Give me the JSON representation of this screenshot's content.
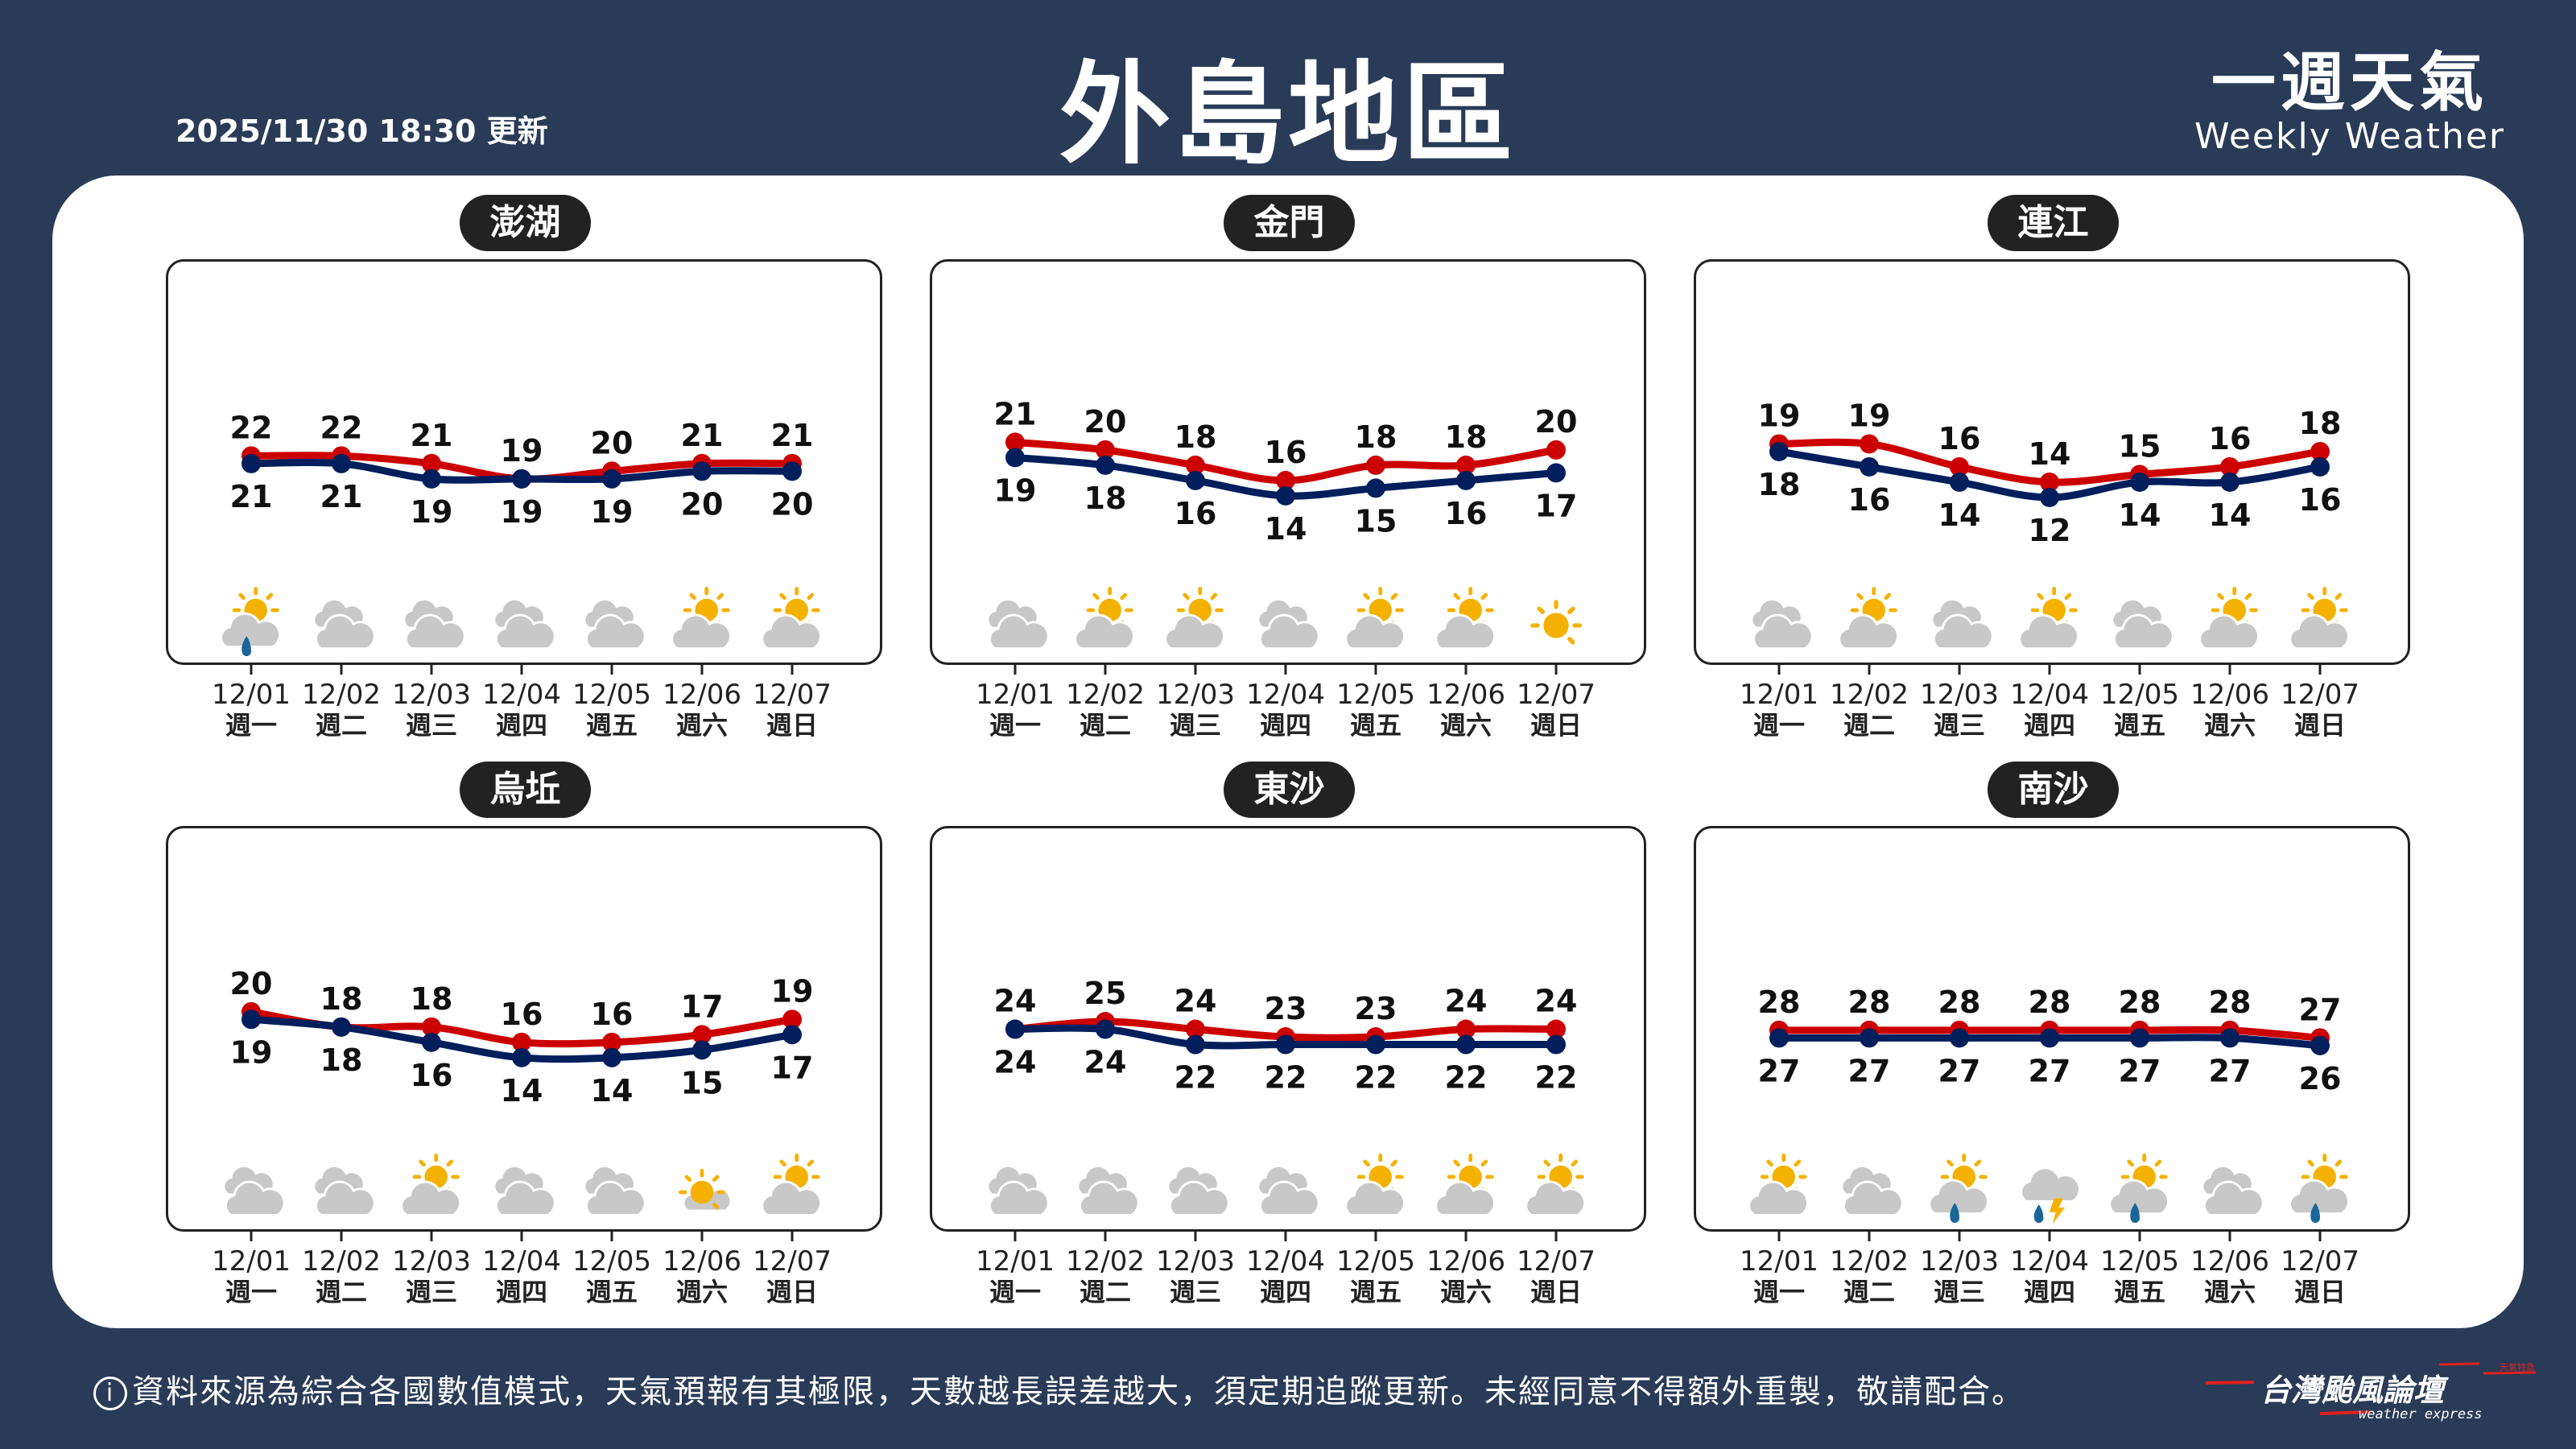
{
  "header": {
    "updated": "2025/11/30 18:30 更新",
    "title": "外島地區",
    "brand_zh": "一週天氣",
    "brand_en": "Weekly Weather"
  },
  "dates": [
    "12/01",
    "12/02",
    "12/03",
    "12/04",
    "12/05",
    "12/06",
    "12/07"
  ],
  "weekdays": [
    "週一",
    "週二",
    "週三",
    "週四",
    "週五",
    "週六",
    "週日"
  ],
  "colors": {
    "background": "#293b57",
    "high": "#cc0000",
    "low": "#001f5c",
    "sun": "#f5b100",
    "cloud": "#c8c8c8",
    "rain": "#1a6699"
  },
  "regions": [
    {
      "name": "澎湖",
      "high": [
        22,
        22,
        21,
        19,
        20,
        21,
        21
      ],
      "low": [
        21,
        21,
        19,
        19,
        19,
        20,
        20
      ],
      "icons": [
        "partly-cloudy-rain",
        "cloudy",
        "cloudy",
        "cloudy",
        "cloudy",
        "partly-cloudy",
        "partly-cloudy"
      ]
    },
    {
      "name": "金門",
      "high": [
        21,
        20,
        18,
        16,
        18,
        18,
        20
      ],
      "low": [
        19,
        18,
        16,
        14,
        15,
        16,
        17
      ],
      "icons": [
        "cloudy",
        "partly-cloudy",
        "partly-cloudy",
        "cloudy",
        "partly-cloudy",
        "partly-cloudy",
        "sunny"
      ]
    },
    {
      "name": "連江",
      "high": [
        19,
        19,
        16,
        14,
        15,
        16,
        18
      ],
      "low": [
        18,
        16,
        14,
        12,
        14,
        14,
        16
      ],
      "icons": [
        "cloudy",
        "partly-cloudy",
        "cloudy",
        "partly-cloudy",
        "cloudy",
        "partly-cloudy",
        "partly-cloudy"
      ]
    },
    {
      "name": "烏坵",
      "high": [
        20,
        18,
        18,
        16,
        16,
        17,
        19
      ],
      "low": [
        19,
        18,
        16,
        14,
        14,
        15,
        17
      ],
      "icons": [
        "cloudy",
        "cloudy",
        "partly-cloudy",
        "cloudy",
        "cloudy",
        "mostly-sunny",
        "partly-cloudy"
      ]
    },
    {
      "name": "東沙",
      "high": [
        24,
        25,
        24,
        23,
        23,
        24,
        24
      ],
      "low": [
        24,
        24,
        22,
        22,
        22,
        22,
        22
      ],
      "icons": [
        "cloudy",
        "cloudy",
        "cloudy",
        "cloudy",
        "partly-cloudy",
        "partly-cloudy",
        "partly-cloudy"
      ]
    },
    {
      "name": "南沙",
      "high": [
        28,
        28,
        28,
        28,
        28,
        28,
        27
      ],
      "low": [
        27,
        27,
        27,
        27,
        27,
        27,
        26
      ],
      "icons": [
        "partly-cloudy",
        "cloudy",
        "partly-cloudy-rain",
        "thunder-rain",
        "partly-cloudy-rain",
        "cloudy",
        "partly-cloudy-rain"
      ]
    }
  ],
  "footer": {
    "info_icon": "i",
    "disclaimer": "資料來源為綜合各國數值模式，天氣預報有其極限，天數越長誤差越大，須定期追蹤更新。未經同意不得額外重製，敬請配合。",
    "logo_zh": "台灣颱風論壇",
    "logo_en": "weather express",
    "logo_tag": "天氣特急"
  }
}
